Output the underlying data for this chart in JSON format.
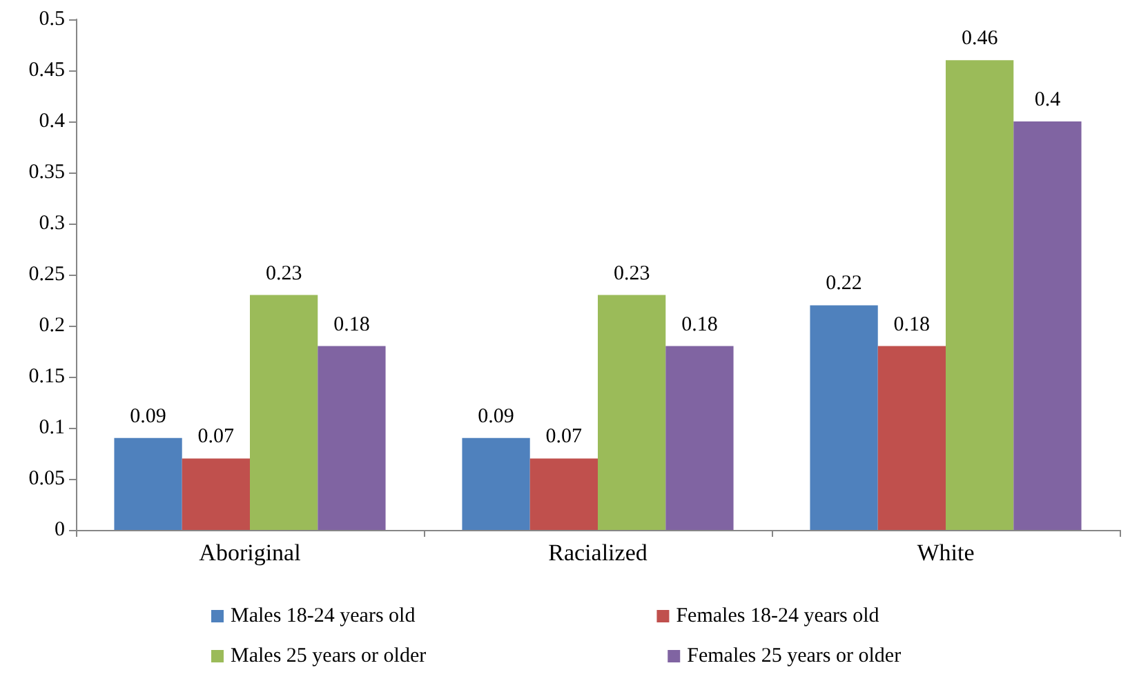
{
  "chart_data": {
    "type": "bar",
    "categories": [
      "Aboriginal",
      "Racialized",
      "White"
    ],
    "series": [
      {
        "name": "Males 18-24 years old",
        "color": "#4f81bd",
        "values": [
          0.09,
          0.09,
          0.22
        ]
      },
      {
        "name": "Females 18-24 years old",
        "color": "#c0504d",
        "values": [
          0.07,
          0.07,
          0.18
        ]
      },
      {
        "name": "Males 25 years or older",
        "color": "#9bbb59",
        "values": [
          0.23,
          0.23,
          0.46
        ]
      },
      {
        "name": "Females 25 years or older",
        "color": "#8064a2",
        "values": [
          0.18,
          0.18,
          0.4
        ]
      }
    ],
    "ylim": [
      0,
      0.5
    ],
    "yticks": [
      0,
      0.05,
      0.1,
      0.15,
      0.2,
      0.25,
      0.3,
      0.35,
      0.4,
      0.45,
      0.5
    ],
    "grid": false,
    "legend": "bottom",
    "data_labels": true
  }
}
